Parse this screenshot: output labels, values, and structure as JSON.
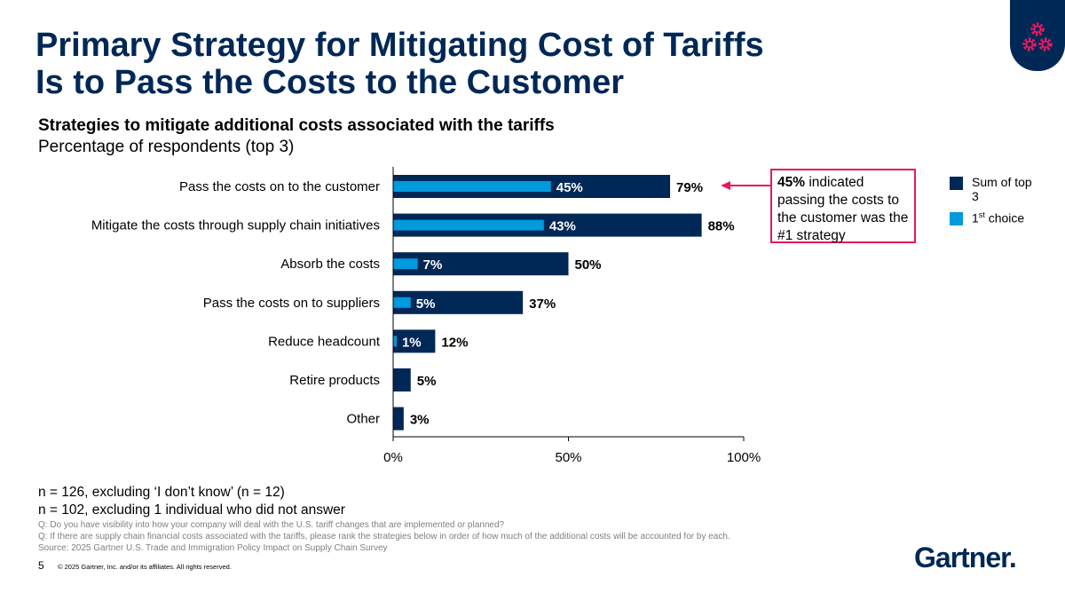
{
  "title_lines": [
    "Primary Strategy for Mitigating Cost of Tariffs",
    "Is to Pass the Costs to the Customer"
  ],
  "subtitle": "Strategies to mitigate additional costs associated with the tariffs",
  "subtitle2": "Percentage of respondents (top 3)",
  "badge_icon": "gears-icon",
  "chart_data": {
    "type": "bar",
    "orientation": "horizontal",
    "categories": [
      "Pass the costs on to the customer",
      "Mitigate the costs through supply chain initiatives",
      "Absorb the costs",
      "Pass the costs on to suppliers",
      "Reduce headcount",
      "Retire products",
      "Other"
    ],
    "series": [
      {
        "name": "Sum of top 3",
        "color": "#002856",
        "values": [
          79,
          88,
          50,
          37,
          12,
          5,
          3
        ]
      },
      {
        "name": "1st choice",
        "color": "#009ADE",
        "values": [
          45,
          43,
          7,
          5,
          1,
          null,
          null
        ]
      }
    ],
    "xlim": [
      0,
      100
    ],
    "xticks": [
      "0%",
      "50%",
      "100%"
    ],
    "xticks_values": [
      0,
      50,
      100
    ]
  },
  "callout": {
    "bold": "45%",
    "text": " indicated passing the costs to the customer was the #1 strategy",
    "color": "#E5195E"
  },
  "legend": {
    "sum": "Sum of top 3",
    "first_pre": "1",
    "first_sup": "st",
    "first_post": " choice"
  },
  "notes": [
    "n = 126, excluding ‘I don’t know’ (n = 12)",
    "n = 102, excluding 1 individual who did not answer"
  ],
  "questions": [
    "Q: Do you have visibility into how your company will deal with the U.S. tariff changes that are implemented or planned?",
    "Q: If there are supply chain financial costs associated with the tariffs, please rank the strategies below in order of how much of the additional costs will be accounted for by each.",
    "Source: 2025 Gartner U.S. Trade and Immigration Policy Impact on Supply Chain Survey"
  ],
  "page_number": "5",
  "copyright": "© 2025 Gartner, Inc. and/or its affiliates. All rights reserved.",
  "logo": "Gartner."
}
